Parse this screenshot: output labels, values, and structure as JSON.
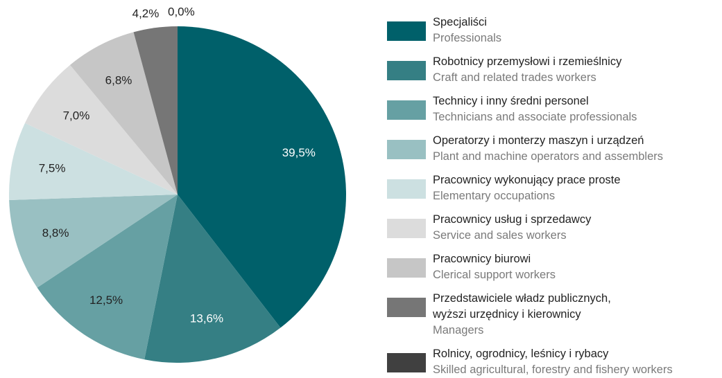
{
  "chart_data": {
    "type": "pie",
    "categories": [
      "Specjaliści",
      "Robotnicy przemysłowi i rzemieślnicy",
      "Technicy i inny średni personel",
      "Operatorzy i monterzy maszyn i urządzeń",
      "Pracownicy wykonujący prace proste",
      "Pracownicy usług i sprzedawcy",
      "Pracownicy biurowi",
      "Przedstawiciele władz publicznych,\nwyższi urzędnicy i kierownicy",
      "Rolnicy, ogrodnicy, leśnicy i rybacy"
    ],
    "categories_en": [
      "Professionals",
      "Craft and related trades workers",
      "Technicians and associate professionals",
      "Plant and machine operators and assemblers",
      "Elementary occupations",
      "Service and sales workers",
      "Clerical support workers",
      "Managers",
      "Skilled agricultural, forestry and fishery workers"
    ],
    "values": [
      39.5,
      13.6,
      12.5,
      8.8,
      7.5,
      7.0,
      6.8,
      4.2,
      0.0
    ],
    "value_labels": [
      "39,5%",
      "13,6%",
      "12,5%",
      "8,8%",
      "7,5%",
      "7,0%",
      "6,8%",
      "4,2%",
      "0,0%"
    ],
    "colors": [
      "#00606a",
      "#357f84",
      "#66a0a3",
      "#99c0c2",
      "#cce0e1",
      "#dcdcdc",
      "#c6c6c6",
      "#767676",
      "#404040"
    ]
  }
}
